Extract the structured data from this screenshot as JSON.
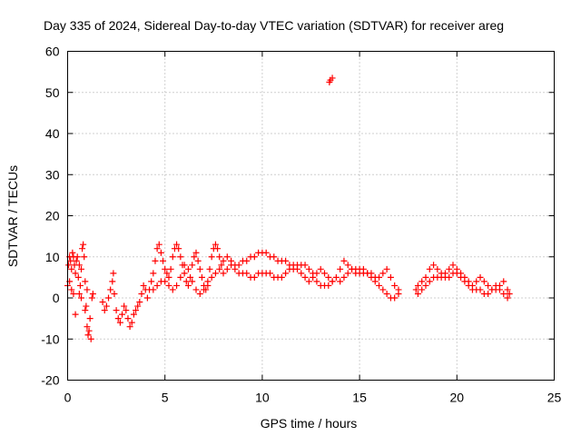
{
  "chart_data": {
    "type": "scatter",
    "title": "Day 335 of 2024, Sidereal Day-to-day VTEC variation (SDTVAR) for receiver areg",
    "xlabel": "GPS time / hours",
    "ylabel": "SDTVAR / TECUs",
    "xlim": [
      0,
      25
    ],
    "ylim": [
      -20,
      60
    ],
    "xticks": [
      "0",
      "5",
      "10",
      "15",
      "20",
      "25"
    ],
    "yticks": [
      "-20",
      "-10",
      "0",
      "10",
      "20",
      "30",
      "40",
      "50",
      "60"
    ],
    "grid": true,
    "marker": "+",
    "color": "#ff0000",
    "series": [
      {
        "name": "SDTVAR",
        "points": [
          [
            0.0,
            3
          ],
          [
            0.05,
            8
          ],
          [
            0.1,
            10
          ],
          [
            0.15,
            9
          ],
          [
            0.2,
            7
          ],
          [
            0.25,
            11
          ],
          [
            0.3,
            10
          ],
          [
            0.35,
            8
          ],
          [
            0.4,
            6
          ],
          [
            0.45,
            9
          ],
          [
            0.5,
            10
          ],
          [
            0.55,
            5
          ],
          [
            0.6,
            1
          ],
          [
            0.65,
            3
          ],
          [
            0.7,
            7
          ],
          [
            0.75,
            12
          ],
          [
            0.8,
            13
          ],
          [
            0.85,
            10
          ],
          [
            0.9,
            4
          ],
          [
            0.95,
            -2
          ],
          [
            1.0,
            -7
          ],
          [
            1.05,
            -9
          ],
          [
            1.1,
            -8
          ],
          [
            1.15,
            -5
          ],
          [
            1.2,
            -10
          ],
          [
            1.25,
            0
          ],
          [
            1.3,
            1
          ],
          [
            0.1,
            4
          ],
          [
            0.2,
            2
          ],
          [
            0.3,
            1
          ],
          [
            0.4,
            -4
          ],
          [
            0.6,
            8
          ],
          [
            0.7,
            0
          ],
          [
            0.9,
            -3
          ],
          [
            1.0,
            2
          ],
          [
            1.8,
            -1
          ],
          [
            1.9,
            -3
          ],
          [
            2.0,
            -2
          ],
          [
            2.1,
            0
          ],
          [
            2.2,
            2
          ],
          [
            2.3,
            4
          ],
          [
            2.35,
            6
          ],
          [
            2.4,
            1
          ],
          [
            2.5,
            -3
          ],
          [
            2.6,
            -5
          ],
          [
            2.7,
            -6
          ],
          [
            2.8,
            -4
          ],
          [
            2.9,
            -2
          ],
          [
            3.0,
            -3
          ],
          [
            3.1,
            -5
          ],
          [
            3.2,
            -7
          ],
          [
            3.3,
            -6
          ],
          [
            3.4,
            -4
          ],
          [
            3.5,
            -3
          ],
          [
            3.6,
            -2
          ],
          [
            3.7,
            -1
          ],
          [
            3.8,
            1
          ],
          [
            3.9,
            3
          ],
          [
            4.0,
            2
          ],
          [
            4.1,
            0
          ],
          [
            4.2,
            2
          ],
          [
            4.3,
            4
          ],
          [
            4.4,
            6
          ],
          [
            4.5,
            9
          ],
          [
            4.6,
            12
          ],
          [
            4.7,
            13
          ],
          [
            4.8,
            11
          ],
          [
            4.9,
            9
          ],
          [
            5.0,
            7
          ],
          [
            5.1,
            6
          ],
          [
            5.2,
            5
          ],
          [
            5.3,
            7
          ],
          [
            5.4,
            10
          ],
          [
            5.5,
            12
          ],
          [
            5.6,
            13
          ],
          [
            5.7,
            12
          ],
          [
            5.8,
            10
          ],
          [
            5.9,
            8
          ],
          [
            6.0,
            6
          ],
          [
            6.1,
            4
          ],
          [
            6.2,
            3
          ],
          [
            6.3,
            5
          ],
          [
            6.4,
            8
          ],
          [
            6.5,
            10
          ],
          [
            6.6,
            11
          ],
          [
            6.7,
            9
          ],
          [
            6.8,
            7
          ],
          [
            6.9,
            5
          ],
          [
            7.0,
            3
          ],
          [
            7.1,
            2
          ],
          [
            7.2,
            4
          ],
          [
            7.3,
            7
          ],
          [
            7.4,
            10
          ],
          [
            7.5,
            12
          ],
          [
            7.6,
            13
          ],
          [
            7.7,
            12
          ],
          [
            7.8,
            10
          ],
          [
            7.9,
            8
          ],
          [
            8.0,
            6
          ],
          [
            8.2,
            7
          ],
          [
            8.4,
            9
          ],
          [
            8.6,
            8
          ],
          [
            8.8,
            8
          ],
          [
            9.0,
            9
          ],
          [
            9.2,
            9
          ],
          [
            9.4,
            10
          ],
          [
            9.6,
            10
          ],
          [
            9.8,
            11
          ],
          [
            10.0,
            11
          ],
          [
            10.2,
            11
          ],
          [
            10.4,
            10
          ],
          [
            10.6,
            10
          ],
          [
            10.8,
            9
          ],
          [
            11.0,
            9
          ],
          [
            11.2,
            9
          ],
          [
            11.4,
            8
          ],
          [
            11.6,
            8
          ],
          [
            11.8,
            7
          ],
          [
            12.0,
            6
          ],
          [
            12.2,
            5
          ],
          [
            12.4,
            4
          ],
          [
            12.6,
            5
          ],
          [
            12.8,
            6
          ],
          [
            13.0,
            7
          ],
          [
            13.2,
            6
          ],
          [
            13.4,
            5
          ],
          [
            13.6,
            4
          ],
          [
            13.8,
            5
          ],
          [
            14.0,
            7
          ],
          [
            14.2,
            9
          ],
          [
            14.4,
            8
          ],
          [
            14.6,
            7
          ],
          [
            14.8,
            7
          ],
          [
            15.0,
            6
          ],
          [
            15.2,
            6
          ],
          [
            15.4,
            6
          ],
          [
            15.6,
            6
          ],
          [
            15.8,
            5
          ],
          [
            16.0,
            5
          ],
          [
            16.2,
            6
          ],
          [
            16.4,
            7
          ],
          [
            16.6,
            5
          ],
          [
            16.8,
            3
          ],
          [
            17.0,
            1
          ],
          [
            17.9,
            2
          ],
          [
            18.0,
            3
          ],
          [
            18.2,
            4
          ],
          [
            18.4,
            5
          ],
          [
            18.6,
            7
          ],
          [
            18.8,
            8
          ],
          [
            19.0,
            7
          ],
          [
            19.2,
            6
          ],
          [
            19.4,
            6
          ],
          [
            19.6,
            7
          ],
          [
            19.8,
            8
          ],
          [
            20.0,
            7
          ],
          [
            20.2,
            6
          ],
          [
            20.4,
            5
          ],
          [
            20.6,
            4
          ],
          [
            20.8,
            3
          ],
          [
            21.0,
            4
          ],
          [
            21.2,
            5
          ],
          [
            21.4,
            4
          ],
          [
            21.6,
            3
          ],
          [
            21.8,
            2
          ],
          [
            22.0,
            2
          ],
          [
            22.2,
            3
          ],
          [
            22.4,
            4
          ],
          [
            22.6,
            2
          ],
          [
            22.7,
            1
          ],
          [
            4.4,
            2
          ],
          [
            4.6,
            3
          ],
          [
            4.8,
            4
          ],
          [
            5.0,
            4
          ],
          [
            5.2,
            3
          ],
          [
            5.4,
            2
          ],
          [
            5.6,
            3
          ],
          [
            5.8,
            5
          ],
          [
            6.0,
            8
          ],
          [
            6.2,
            7
          ],
          [
            6.4,
            4
          ],
          [
            6.6,
            2
          ],
          [
            6.8,
            1
          ],
          [
            7.0,
            2
          ],
          [
            7.2,
            3
          ],
          [
            7.4,
            5
          ],
          [
            7.6,
            6
          ],
          [
            7.8,
            7
          ],
          [
            8.0,
            9
          ],
          [
            8.2,
            10
          ],
          [
            8.4,
            8
          ],
          [
            8.6,
            7
          ],
          [
            8.8,
            6
          ],
          [
            9.0,
            6
          ],
          [
            9.2,
            6
          ],
          [
            9.4,
            5
          ],
          [
            9.6,
            5
          ],
          [
            9.8,
            6
          ],
          [
            10.0,
            6
          ],
          [
            10.2,
            6
          ],
          [
            10.4,
            6
          ],
          [
            10.6,
            5
          ],
          [
            10.8,
            5
          ],
          [
            11.0,
            5
          ],
          [
            11.2,
            6
          ],
          [
            11.4,
            7
          ],
          [
            11.6,
            7
          ],
          [
            11.8,
            8
          ],
          [
            12.0,
            8
          ],
          [
            12.2,
            8
          ],
          [
            12.4,
            7
          ],
          [
            12.6,
            6
          ],
          [
            12.8,
            4
          ],
          [
            13.0,
            3
          ],
          [
            13.2,
            3
          ],
          [
            13.4,
            3
          ],
          [
            13.6,
            4
          ],
          [
            14.0,
            4
          ],
          [
            14.2,
            5
          ],
          [
            14.4,
            6
          ],
          [
            14.6,
            7
          ],
          [
            14.8,
            6
          ],
          [
            15.0,
            7
          ],
          [
            15.2,
            7
          ],
          [
            15.4,
            6
          ],
          [
            15.6,
            5
          ],
          [
            15.8,
            4
          ],
          [
            16.0,
            3
          ],
          [
            16.2,
            2
          ],
          [
            16.4,
            1
          ],
          [
            16.6,
            0
          ],
          [
            16.8,
            0
          ],
          [
            17.0,
            2
          ],
          [
            18.0,
            1
          ],
          [
            18.2,
            2
          ],
          [
            18.4,
            3
          ],
          [
            18.6,
            4
          ],
          [
            18.8,
            5
          ],
          [
            19.0,
            5
          ],
          [
            19.2,
            5
          ],
          [
            19.4,
            5
          ],
          [
            19.6,
            5
          ],
          [
            19.8,
            6
          ],
          [
            20.0,
            6
          ],
          [
            20.2,
            5
          ],
          [
            20.4,
            4
          ],
          [
            20.6,
            3
          ],
          [
            20.8,
            2
          ],
          [
            21.0,
            2
          ],
          [
            21.2,
            2
          ],
          [
            21.4,
            1
          ],
          [
            21.6,
            1
          ],
          [
            21.8,
            2
          ],
          [
            22.0,
            3
          ],
          [
            22.2,
            2
          ],
          [
            22.4,
            1
          ],
          [
            22.6,
            0
          ],
          [
            13.5,
            53
          ],
          [
            13.6,
            53.5
          ],
          [
            13.45,
            52.5
          ]
        ]
      }
    ]
  }
}
